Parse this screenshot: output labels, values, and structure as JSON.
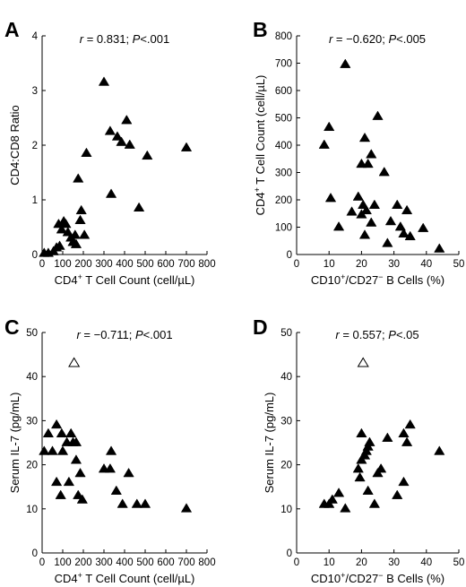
{
  "chart_data": [
    {
      "panel": "A",
      "type": "scatter",
      "stat_r": "0.831",
      "stat_p": "<.001",
      "xlabel": "CD4+ T Cell Count (cell/µL)",
      "ylabel": "CD4:CD8 Ratio",
      "xlim": [
        0,
        800
      ],
      "ylim": [
        0,
        4
      ],
      "xticks": [
        0,
        100,
        200,
        300,
        400,
        500,
        600,
        700,
        800
      ],
      "yticks": [
        0,
        1,
        2,
        3,
        4
      ],
      "series": [
        {
          "marker": "filled-triangle",
          "points": [
            [
              10,
              0.02
            ],
            [
              30,
              0.02
            ],
            [
              55,
              0.05
            ],
            [
              70,
              0.12
            ],
            [
              85,
              0.15
            ],
            [
              80,
              0.55
            ],
            [
              95,
              0.45
            ],
            [
              105,
              0.6
            ],
            [
              115,
              0.55
            ],
            [
              125,
              0.4
            ],
            [
              140,
              0.3
            ],
            [
              160,
              0.35
            ],
            [
              150,
              0.22
            ],
            [
              165,
              0.18
            ],
            [
              185,
              0.62
            ],
            [
              190,
              0.8
            ],
            [
              205,
              0.35
            ],
            [
              175,
              1.38
            ],
            [
              215,
              1.85
            ],
            [
              300,
              3.15
            ],
            [
              330,
              2.25
            ],
            [
              365,
              2.15
            ],
            [
              385,
              2.05
            ],
            [
              410,
              2.45
            ],
            [
              425,
              2.0
            ],
            [
              335,
              1.1
            ],
            [
              470,
              0.85
            ],
            [
              510,
              1.8
            ],
            [
              700,
              1.95
            ]
          ]
        }
      ]
    },
    {
      "panel": "B",
      "type": "scatter",
      "stat_r": "−0.620",
      "stat_p": "<.005",
      "xlabel": "CD10+/CD27− B Cells (%)",
      "ylabel": "CD4+ T Cell Count (cell/µL)",
      "xlim": [
        0,
        50
      ],
      "ylim": [
        0,
        800
      ],
      "xticks": [
        0,
        10,
        20,
        30,
        40,
        50
      ],
      "yticks": [
        0,
        100,
        200,
        300,
        400,
        500,
        600,
        700,
        800
      ],
      "series": [
        {
          "marker": "filled-triangle",
          "points": [
            [
              15,
              695
            ],
            [
              10,
              465
            ],
            [
              8.5,
              400
            ],
            [
              23,
              365
            ],
            [
              21,
              425
            ],
            [
              25,
              505
            ],
            [
              20,
              330
            ],
            [
              22,
              330
            ],
            [
              27,
              300
            ],
            [
              10.5,
              205
            ],
            [
              19,
              210
            ],
            [
              20.5,
              180
            ],
            [
              21.5,
              160
            ],
            [
              24,
              180
            ],
            [
              31,
              180
            ],
            [
              17,
              155
            ],
            [
              20,
              145
            ],
            [
              23,
              115
            ],
            [
              34,
              160
            ],
            [
              29,
              120
            ],
            [
              32,
              100
            ],
            [
              13,
              100
            ],
            [
              21,
              70
            ],
            [
              33,
              75
            ],
            [
              35,
              65
            ],
            [
              39,
              95
            ],
            [
              28,
              40
            ],
            [
              44,
              20
            ]
          ]
        }
      ]
    },
    {
      "panel": "C",
      "type": "scatter",
      "stat_r": "−0.711",
      "stat_p": "<.001",
      "xlabel": "CD4+ T Cell Count (cell/µL)",
      "ylabel": "Serum IL-7 (pg/mL)",
      "xlim": [
        0,
        800
      ],
      "ylim": [
        0,
        50
      ],
      "xticks": [
        0,
        100,
        200,
        300,
        400,
        500,
        600,
        700,
        800
      ],
      "yticks": [
        0,
        10,
        20,
        30,
        40,
        50
      ],
      "series": [
        {
          "marker": "filled-triangle",
          "points": [
            [
              10,
              23
            ],
            [
              30,
              27
            ],
            [
              50,
              23
            ],
            [
              70,
              29
            ],
            [
              95,
              27
            ],
            [
              100,
              23
            ],
            [
              120,
              25
            ],
            [
              140,
              27
            ],
            [
              150,
              25
            ],
            [
              165,
              25
            ],
            [
              165,
              21
            ],
            [
              185,
              18
            ],
            [
              70,
              16
            ],
            [
              90,
              13
            ],
            [
              130,
              16
            ],
            [
              175,
              13
            ],
            [
              195,
              12
            ],
            [
              300,
              19
            ],
            [
              330,
              19
            ],
            [
              335,
              23
            ],
            [
              360,
              14
            ],
            [
              390,
              11
            ],
            [
              420,
              18
            ],
            [
              460,
              11
            ],
            [
              500,
              11
            ],
            [
              700,
              10
            ]
          ]
        },
        {
          "marker": "open-triangle",
          "points": [
            [
              155,
              43
            ]
          ]
        }
      ]
    },
    {
      "panel": "D",
      "type": "scatter",
      "stat_r": "0.557",
      "stat_p": "<.05",
      "xlabel": "CD10+/CD27− B Cells (%)",
      "ylabel": "Serum IL-7 (pg/mL)",
      "xlim": [
        0,
        50
      ],
      "ylim": [
        0,
        50
      ],
      "xticks": [
        0,
        10,
        20,
        30,
        40,
        50
      ],
      "yticks": [
        0,
        10,
        20,
        30,
        40,
        50
      ],
      "series": [
        {
          "marker": "filled-triangle",
          "points": [
            [
              8.5,
              11
            ],
            [
              10,
              11
            ],
            [
              11,
              12
            ],
            [
              13,
              13.5
            ],
            [
              15,
              10
            ],
            [
              19,
              19
            ],
            [
              20,
              21
            ],
            [
              19.5,
              17
            ],
            [
              21,
              22
            ],
            [
              21.5,
              23
            ],
            [
              22,
              24
            ],
            [
              22.5,
              25
            ],
            [
              20,
              27
            ],
            [
              22,
              14
            ],
            [
              25,
              18
            ],
            [
              24,
              11
            ],
            [
              26,
              19
            ],
            [
              28,
              26
            ],
            [
              31,
              13
            ],
            [
              33,
              16
            ],
            [
              33,
              27
            ],
            [
              34,
              25
            ],
            [
              35,
              29
            ],
            [
              44,
              23
            ]
          ]
        },
        {
          "marker": "open-triangle",
          "points": [
            [
              20.5,
              43
            ]
          ]
        }
      ]
    }
  ]
}
